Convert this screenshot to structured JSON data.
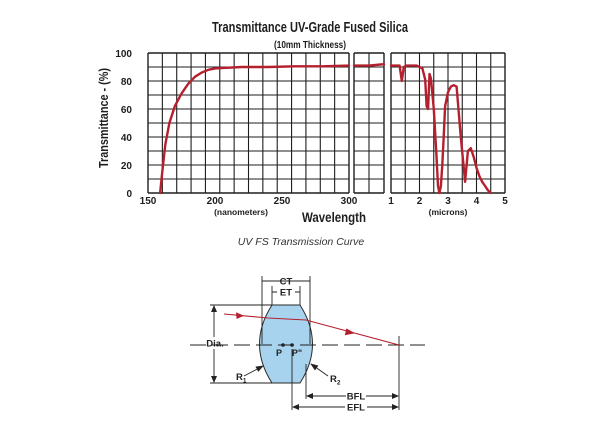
{
  "chart_data": {
    "type": "line",
    "title": "Transmittance UV-Grade Fused Silica",
    "subtitle": "(10mm Thickness)",
    "ylabel": "Transmittance - (%)",
    "xlabel": "Wavelength",
    "ylim": [
      0,
      100
    ],
    "yticks": [
      "0",
      "20",
      "40",
      "60",
      "80",
      "100"
    ],
    "grid": true,
    "panels": [
      {
        "unit_label": "(nanometers)",
        "xlim": [
          150,
          300
        ],
        "xticks": [
          "150",
          "200",
          "250",
          "300"
        ],
        "series": [
          {
            "color": "#b5202e",
            "x": [
              159,
              161,
              163,
              166,
              170,
              175,
              180,
              185,
              190,
              195,
              200,
              210,
              220,
              240,
              260,
              280,
              300
            ],
            "y": [
              0,
              18,
              35,
              50,
              62,
              71,
              78,
              83,
              86,
              88,
              89,
              89.5,
              90,
              90,
              90.5,
              90.5,
              91
            ]
          }
        ]
      },
      {
        "unit_label": "",
        "xlim": [
          300,
          400
        ],
        "xticks": [],
        "series": [
          {
            "color": "#b5202e",
            "x": [
              300,
              350,
              400
            ],
            "y": [
              91,
              91,
              92
            ]
          }
        ]
      },
      {
        "unit_label": "(microns)",
        "xlim": [
          1,
          5
        ],
        "xticks": [
          "1",
          "2",
          "3",
          "4",
          "5"
        ],
        "series": [
          {
            "color": "#b5202e",
            "x": [
              1.0,
              1.2,
              1.3,
              1.38,
              1.45,
              1.55,
              1.9,
              2.1,
              2.2,
              2.25,
              2.3,
              2.35,
              2.4,
              2.5,
              2.6,
              2.65,
              2.7,
              2.75,
              2.8,
              2.85,
              2.9,
              3.0,
              3.1,
              3.2,
              3.3,
              3.45,
              3.6,
              3.7,
              3.8,
              3.9,
              4.0,
              4.1,
              4.2,
              4.3,
              4.4,
              4.5
            ],
            "y": [
              91,
              91,
              91,
              80,
              90,
              91,
              91,
              89,
              81,
              62,
              60,
              85,
              82,
              60,
              25,
              5,
              0,
              5,
              20,
              40,
              62,
              72,
              76,
              77,
              76,
              40,
              8,
              30,
              32,
              26,
              18,
              12,
              8,
              5,
              2,
              0
            ]
          }
        ]
      }
    ]
  },
  "figure": {
    "caption": "UV FS Transmission Curve"
  },
  "lens": {
    "labels": {
      "ct": "CT",
      "et": "ET",
      "dia": "Dia.",
      "r1": "R",
      "r1_sub": "1",
      "r2": "R",
      "r2_sub": "2",
      "p": "P",
      "p_prime": "P\"",
      "bfl": "BFL",
      "efl": "EFL"
    },
    "colors": {
      "lens_fill": "#a8d3ee",
      "lens_stroke": "#2a2a2a",
      "ray": "#b5202e"
    }
  }
}
